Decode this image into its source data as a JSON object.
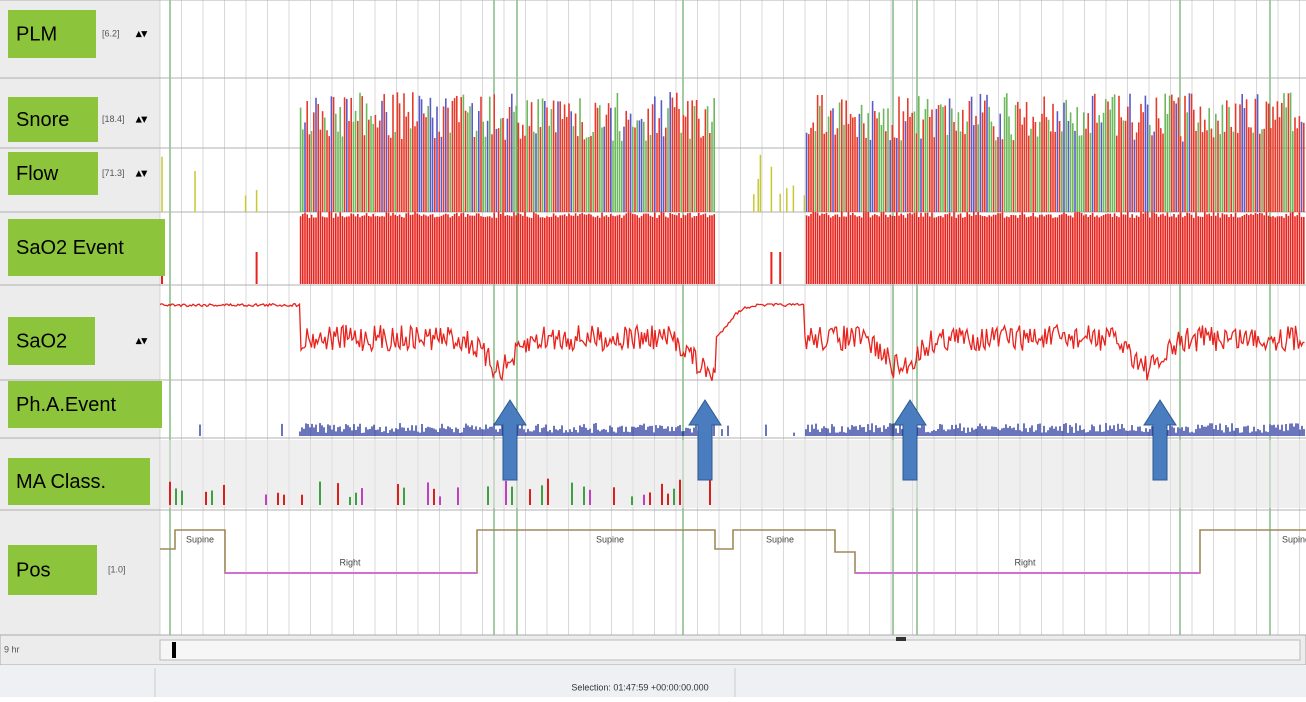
{
  "channels": [
    {
      "label": "PLM",
      "scale": "[6.2]"
    },
    {
      "label": "Snore",
      "scale": "[18.4]"
    },
    {
      "label": "Flow",
      "scale": "[71.3]"
    },
    {
      "label": "SaO2 Event"
    },
    {
      "label": "SaO2"
    },
    {
      "label": "Ph.A.Event"
    },
    {
      "label": "MA Class."
    },
    {
      "label": "Pos",
      "scale": "[1.0]"
    }
  ],
  "positions": [
    "Supine",
    "Right",
    "Supine",
    "Supine",
    "Right",
    "Supine"
  ],
  "timebar_label": "9 hr",
  "status": "Selection: 01:47:59  +00:00:00.000"
}
